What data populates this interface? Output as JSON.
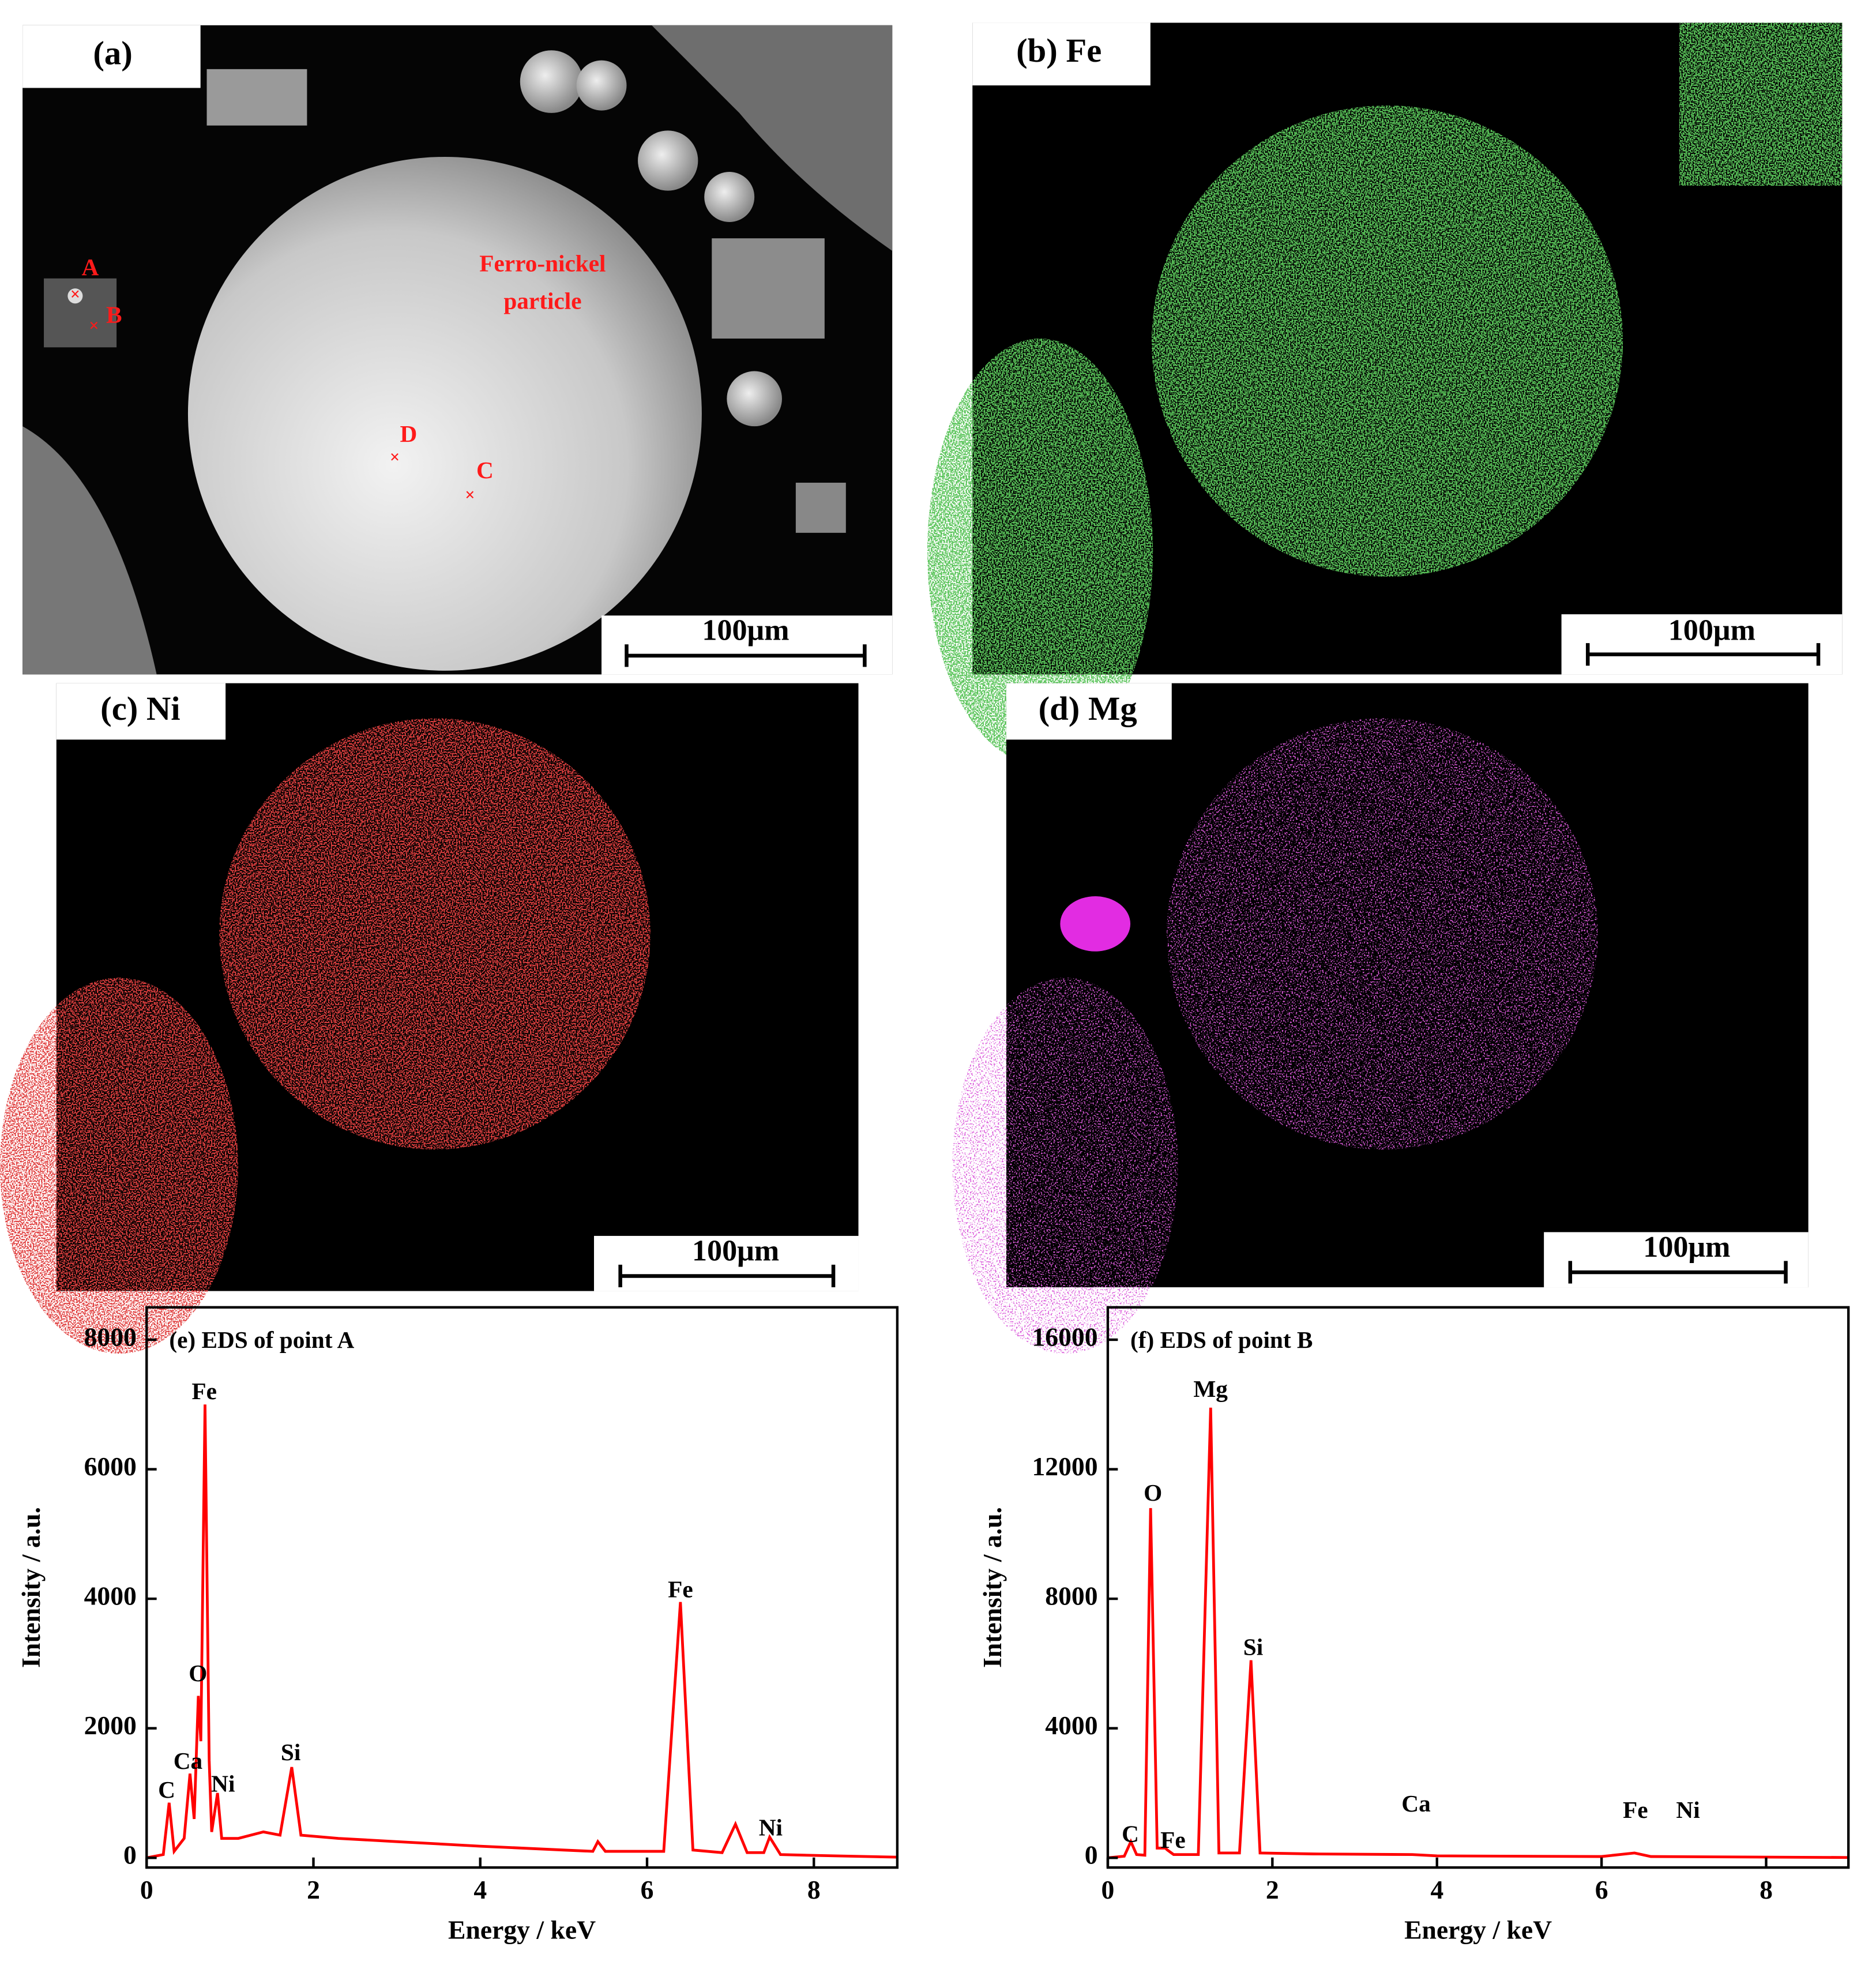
{
  "panels": [
    {
      "label": "(a)",
      "scale_bar": "100μm",
      "annotations": [
        "Ferro-nickel",
        "particle",
        "A",
        "B",
        "C",
        "D"
      ]
    },
    {
      "label": "(b) Fe",
      "scale_bar": "100μm"
    },
    {
      "label": "(c) Ni",
      "scale_bar": "100μm"
    },
    {
      "label": "(d) Mg",
      "scale_bar": "100μm"
    }
  ],
  "chart_data": [
    {
      "type": "line",
      "title": "(e) EDS of point A",
      "x_label": "Energy / keV",
      "y_label": "Intensity / a.u.",
      "color": "#ff0000",
      "x": [
        0,
        0.2,
        0.27,
        0.33,
        0.45,
        0.52,
        0.57,
        0.62,
        0.65,
        0.7,
        0.75,
        0.78,
        0.85,
        0.9,
        1.1,
        1.4,
        1.6,
        1.74,
        1.85,
        2.3,
        3,
        4,
        5,
        5.35,
        5.41,
        5.5,
        6.2,
        6.4,
        6.55,
        6.9,
        7.06,
        7.2,
        7.4,
        7.47,
        7.6,
        8.25,
        9
      ],
      "values": [
        0,
        50,
        850,
        100,
        300,
        1300,
        600,
        2500,
        1800,
        7000,
        1500,
        400,
        1000,
        300,
        300,
        400,
        350,
        1400,
        350,
        300,
        250,
        180,
        120,
        100,
        250,
        100,
        100,
        3950,
        120,
        80,
        520,
        80,
        80,
        320,
        50,
        30,
        10
      ],
      "xlim": [
        0,
        9
      ],
      "ylim": [
        -150,
        8500
      ],
      "xticks": [
        0,
        2,
        4,
        6,
        8
      ],
      "yticks": [
        0,
        2000,
        4000,
        6000,
        8000
      ],
      "annotations": [
        "Fe",
        "O",
        "Ca",
        "C",
        "Ni",
        "Si",
        "Fe",
        "Ni"
      ]
    },
    {
      "type": "line",
      "title": "(f) EDS of point B",
      "x_label": "Energy / keV",
      "y_label": "Intensity / a.u.",
      "color": "#ff0000",
      "x": [
        0,
        0.2,
        0.28,
        0.35,
        0.45,
        0.52,
        0.6,
        0.7,
        0.72,
        0.8,
        1.1,
        1.25,
        1.35,
        1.6,
        1.74,
        1.85,
        2.5,
        3.7,
        4,
        6,
        6.4,
        6.6,
        9
      ],
      "values": [
        0,
        50,
        500,
        100,
        80,
        10800,
        300,
        300,
        250,
        100,
        100,
        13900,
        150,
        150,
        6100,
        150,
        120,
        100,
        60,
        40,
        150,
        40,
        10
      ],
      "xlim": [
        0,
        9
      ],
      "ylim": [
        -300,
        17000
      ],
      "xticks": [
        0,
        2,
        4,
        6,
        8
      ],
      "yticks": [
        0,
        4000,
        8000,
        12000,
        16000
      ],
      "annotations": [
        "O",
        "Mg",
        "Si",
        "C",
        "Fe",
        "Ca",
        "Fe",
        "Ni"
      ]
    }
  ]
}
